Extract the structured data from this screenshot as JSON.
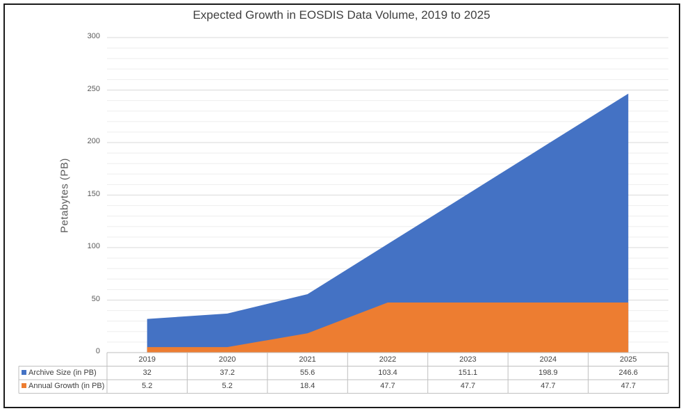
{
  "chart_data": {
    "type": "area",
    "title": "Expected Growth in EOSDIS Data Volume, 2019 to 2025",
    "ylabel": "Petabytes (PB)",
    "ylim": [
      0,
      300
    ],
    "yticks": [
      0,
      50,
      100,
      150,
      200,
      250,
      300
    ],
    "categories": [
      "2019",
      "2020",
      "2021",
      "2022",
      "2023",
      "2024",
      "2025"
    ],
    "series": [
      {
        "name": "Archive Size (in PB)",
        "color": "#4472C4",
        "values": [
          32,
          37.2,
          55.6,
          103.4,
          151.1,
          198.9,
          246.6
        ]
      },
      {
        "name": "Annual Growth (in PB)",
        "color": "#ED7D31",
        "values": [
          5.2,
          5.2,
          18.4,
          47.7,
          47.7,
          47.7,
          47.7
        ]
      }
    ],
    "data_table": {
      "rows": [
        [
          "32",
          "37.2",
          "55.6",
          "103.4",
          "151.1",
          "198.9",
          "246.6"
        ],
        [
          "5.2",
          "5.2",
          "18.4",
          "47.7",
          "47.7",
          "47.7",
          "47.7"
        ]
      ]
    },
    "grid": true,
    "minor_grid": true,
    "legend": "data-table"
  }
}
